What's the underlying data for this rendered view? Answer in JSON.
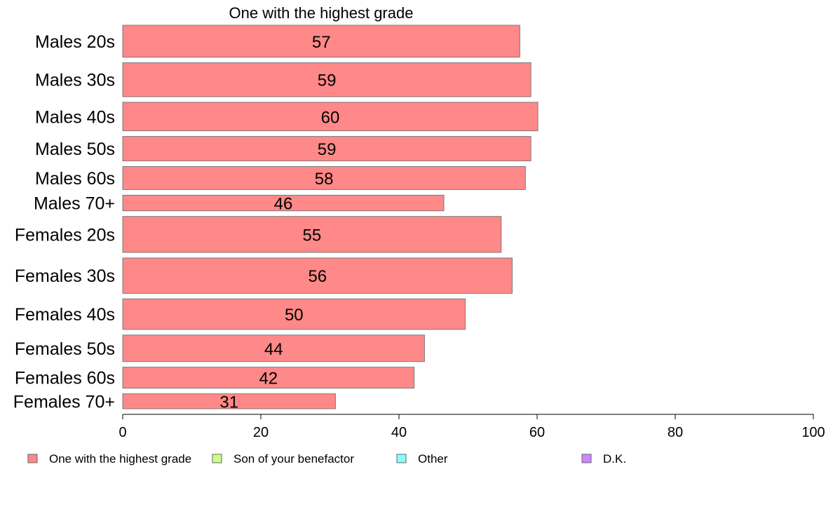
{
  "chart_data": {
    "type": "bar",
    "orientation": "horizontal",
    "title": "One with the highest grade",
    "categories": [
      "Males 20s",
      "Males 30s",
      "Males 40s",
      "Males 50s",
      "Males 60s",
      "Males 70+",
      "Females 20s",
      "Females 30s",
      "Females 40s",
      "Females 50s",
      "Females 60s",
      "Females 70+"
    ],
    "category_weights": [
      47,
      50,
      42,
      36,
      34,
      23,
      53,
      52,
      45,
      39,
      31,
      22
    ],
    "series": [
      {
        "name": "One with the highest grade",
        "color": "#ff8888",
        "values": [
          57.5,
          59.1,
          60.1,
          59.1,
          58.3,
          46.5,
          54.8,
          56.4,
          49.6,
          43.7,
          42.2,
          30.8
        ],
        "labels": [
          "57",
          "59",
          "60",
          "59",
          "58",
          "46",
          "55",
          "56",
          "50",
          "44",
          "42",
          "31"
        ]
      }
    ],
    "xlim": [
      0,
      100
    ],
    "xticks": [
      0,
      20,
      40,
      60,
      80,
      100
    ],
    "xlabel": "",
    "ylabel": "",
    "grid": false,
    "legend_position": "bottom",
    "legend": [
      {
        "label": "One with the highest grade",
        "color": "#ff8888"
      },
      {
        "label": "Son of your benefactor",
        "color": "#ccff88"
      },
      {
        "label": "Other",
        "color": "#88ffff"
      },
      {
        "label": "D.K.",
        "color": "#cc88ff"
      }
    ]
  }
}
